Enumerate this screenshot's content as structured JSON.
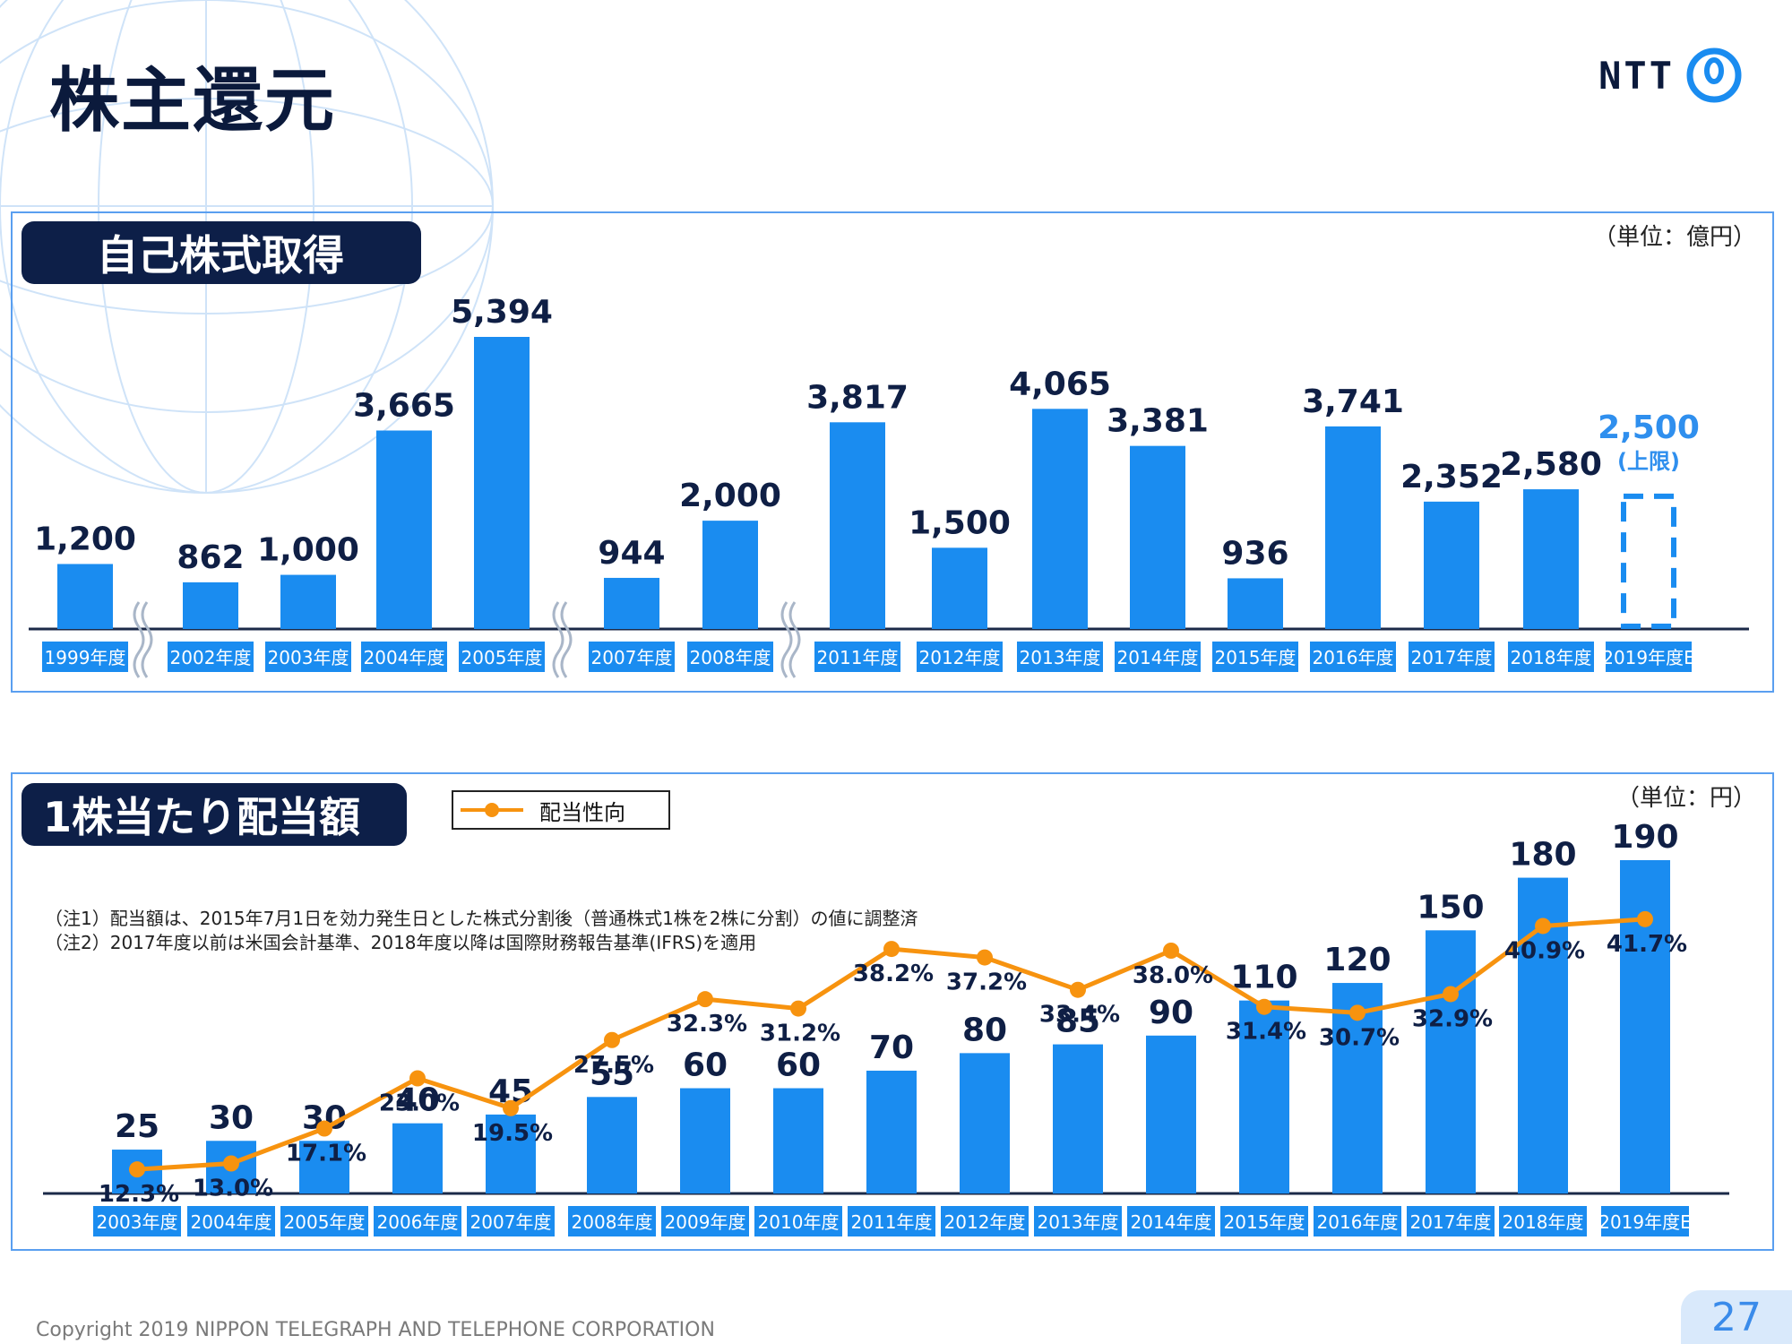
{
  "header": {
    "title": "株主還元",
    "logo_text": "NTT"
  },
  "buyback": {
    "heading": "自己株式取得",
    "unit": "（単位：億円）"
  },
  "dividend": {
    "heading": "1株当たり配当額",
    "unit": "（単位：円）",
    "legend_label": "配当性向",
    "note1": "（注1）配当額は、2015年7月1日を効力発生日とした株式分割後（普通株式1株を2株に分割）の値に調整済",
    "note2": "（注2）2017年度以前は米国会計基準、2018年度以降は国際財務報告基準(IFRS)を適用"
  },
  "footer": {
    "copyright": "Copyright 2019 NIPPON TELEGRAPH AND TELEPHONE CORPORATION",
    "page_number": "27"
  },
  "colors": {
    "bar": "#1a8cf0",
    "line": "#f7930f",
    "navy": "#0d1f48",
    "estimate_text": "#2f8fee"
  },
  "chart_data": [
    {
      "type": "bar",
      "title": "自己株式取得",
      "unit": "億円",
      "categories": [
        "1999年度",
        "2002年度",
        "2003年度",
        "2004年度",
        "2005年度",
        "2007年度",
        "2008年度",
        "2011年度",
        "2012年度",
        "2013年度",
        "2014年度",
        "2015年度",
        "2016年度",
        "2017年度",
        "2018年度",
        "2019年度E"
      ],
      "values": [
        1200,
        862,
        1000,
        3665,
        5394,
        944,
        2000,
        3817,
        1500,
        4065,
        3381,
        936,
        3741,
        2352,
        2580,
        2500
      ],
      "value_labels": [
        "1,200",
        "862",
        "1,000",
        "3,665",
        "5,394",
        "944",
        "2,000",
        "3,817",
        "1,500",
        "4,065",
        "3,381",
        "936",
        "3,741",
        "2,352",
        "2,580",
        "2,500"
      ],
      "estimate_index": 15,
      "estimate_note": "(上限)",
      "axis_breaks_after": [
        "1999年度",
        "2005年度",
        "2008年度"
      ],
      "ylim": [
        0,
        5394
      ]
    },
    {
      "type": "bar",
      "title": "1株当たり配当額",
      "unit": "円",
      "categories": [
        "2003年度",
        "2004年度",
        "2005年度",
        "2006年度",
        "2007年度",
        "2008年度",
        "2009年度",
        "2010年度",
        "2011年度",
        "2012年度",
        "2013年度",
        "2014年度",
        "2015年度",
        "2016年度",
        "2017年度",
        "2018年度",
        "2019年度E"
      ],
      "values": [
        25,
        30,
        30,
        40,
        45,
        55,
        60,
        60,
        70,
        80,
        85,
        90,
        110,
        120,
        150,
        180,
        190
      ],
      "series": [
        {
          "name": "配当性向",
          "type": "line",
          "values": [
            12.3,
            13.0,
            17.1,
            23.0,
            19.5,
            27.5,
            32.3,
            31.2,
            38.2,
            37.2,
            33.4,
            38.0,
            31.4,
            30.7,
            32.9,
            40.9,
            41.7
          ],
          "labels": [
            "12.3%",
            "13.0%",
            "17.1%",
            "23.0%",
            "19.5%",
            "27.5%",
            "32.3%",
            "31.2%",
            "38.2%",
            "37.2%",
            "33.4%",
            "38.0%",
            "31.4%",
            "30.7%",
            "32.9%",
            "40.9%",
            "41.7%"
          ]
        }
      ],
      "ylim": [
        0,
        190
      ]
    }
  ]
}
